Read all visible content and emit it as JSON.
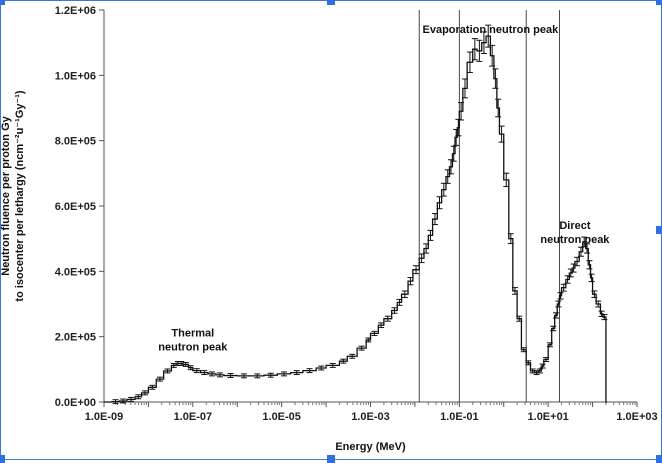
{
  "chart_data": {
    "type": "line",
    "xlabel": "Energy (MeV)",
    "ylabel_line1": "Neutron fluence per proton Gy",
    "ylabel_line2": "to isocenter per lethargy (ncm⁻²u⁻¹Gy⁻¹)",
    "x_scale": "log",
    "xlim": [
      1e-09,
      1000
    ],
    "ylim": [
      0,
      1200000
    ],
    "x_tick_labels": [
      "1.0E-09",
      "1.0E-07",
      "1.0E-05",
      "1.0E-03",
      "1.0E-01",
      "1.0E+01",
      "1.0E+03"
    ],
    "x_tick_values": [
      1e-09,
      1e-07,
      1e-05,
      0.001,
      0.1,
      10,
      1000
    ],
    "y_tick_labels": [
      "0.0E+00",
      "2.0E+05",
      "4.0E+05",
      "6.0E+05",
      "8.0E+05",
      "1.0E+06",
      "1.2E+06"
    ],
    "y_tick_values": [
      0,
      200000,
      400000,
      600000,
      800000,
      1000000,
      1200000
    ],
    "grid": false,
    "vertical_lines_x": [
      0.0125,
      0.1,
      3.2,
      18
    ],
    "annotations": [
      {
        "lines": [
          "Thermal",
          "neutron peak"
        ],
        "x": 1e-07,
        "y": 200000
      },
      {
        "lines": [
          "Evaporation  neutron peak"
        ],
        "x": 0.5,
        "y": 1130000
      },
      {
        "lines": [
          "Direct",
          "neutron peak"
        ],
        "x": 40,
        "y": 530000
      }
    ],
    "series": [
      {
        "style": "step-with-errorbars",
        "x": [
          1e-09,
          1.5e-09,
          2.2e-09,
          3.3e-09,
          5e-09,
          7e-09,
          1e-08,
          1.5e-08,
          2.2e-08,
          3.3e-08,
          4.2e-08,
          5e-08,
          6e-08,
          8e-08,
          1e-07,
          1.5e-07,
          2.2e-07,
          3.3e-07,
          5e-07,
          1e-06,
          2e-06,
          4e-06,
          8e-06,
          1.6e-05,
          3e-05,
          6e-05,
          0.0001,
          0.0002,
          0.0003,
          0.0005,
          0.0008,
          0.001,
          0.0015,
          0.002,
          0.003,
          0.004,
          0.005,
          0.007,
          0.009,
          0.0125,
          0.016,
          0.02,
          0.025,
          0.032,
          0.04,
          0.05,
          0.06,
          0.07,
          0.08,
          0.09,
          0.1,
          0.12,
          0.15,
          0.2,
          0.25,
          0.32,
          0.4,
          0.5,
          0.6,
          0.7,
          0.8,
          1.0,
          1.3,
          1.6,
          2.0,
          2.5,
          3.2,
          4.0,
          5.0,
          6.0,
          7.0,
          8.0,
          10,
          12,
          14,
          16,
          18,
          20,
          25,
          30,
          35,
          40,
          50,
          60,
          70,
          80,
          90,
          100,
          120,
          150,
          170,
          200,
          210
        ],
        "y": [
          0,
          1000,
          3000,
          8000,
          16000,
          28000,
          45000,
          70000,
          95000,
          112000,
          118000,
          118000,
          115000,
          105000,
          96000,
          90000,
          86000,
          83000,
          81000,
          80000,
          80000,
          82000,
          86000,
          90000,
          96000,
          104000,
          112000,
          125000,
          140000,
          165000,
          190000,
          210000,
          235000,
          255000,
          280000,
          305000,
          330000,
          370000,
          405000,
          440000,
          470000,
          510000,
          560000,
          610000,
          650000,
          690000,
          720000,
          760000,
          810000,
          840000,
          890000,
          960000,
          1040000,
          1080000,
          1075000,
          1100000,
          1120000,
          1060000,
          990000,
          900000,
          820000,
          680000,
          500000,
          340000,
          255000,
          160000,
          120000,
          95000,
          90000,
          95000,
          110000,
          130000,
          175000,
          225000,
          265000,
          300000,
          325000,
          350000,
          375000,
          395000,
          410000,
          430000,
          460000,
          490000,
          470000,
          420000,
          380000,
          330000,
          300000,
          270000,
          260000,
          0,
          0
        ],
        "error_frac": 0.03
      }
    ]
  }
}
